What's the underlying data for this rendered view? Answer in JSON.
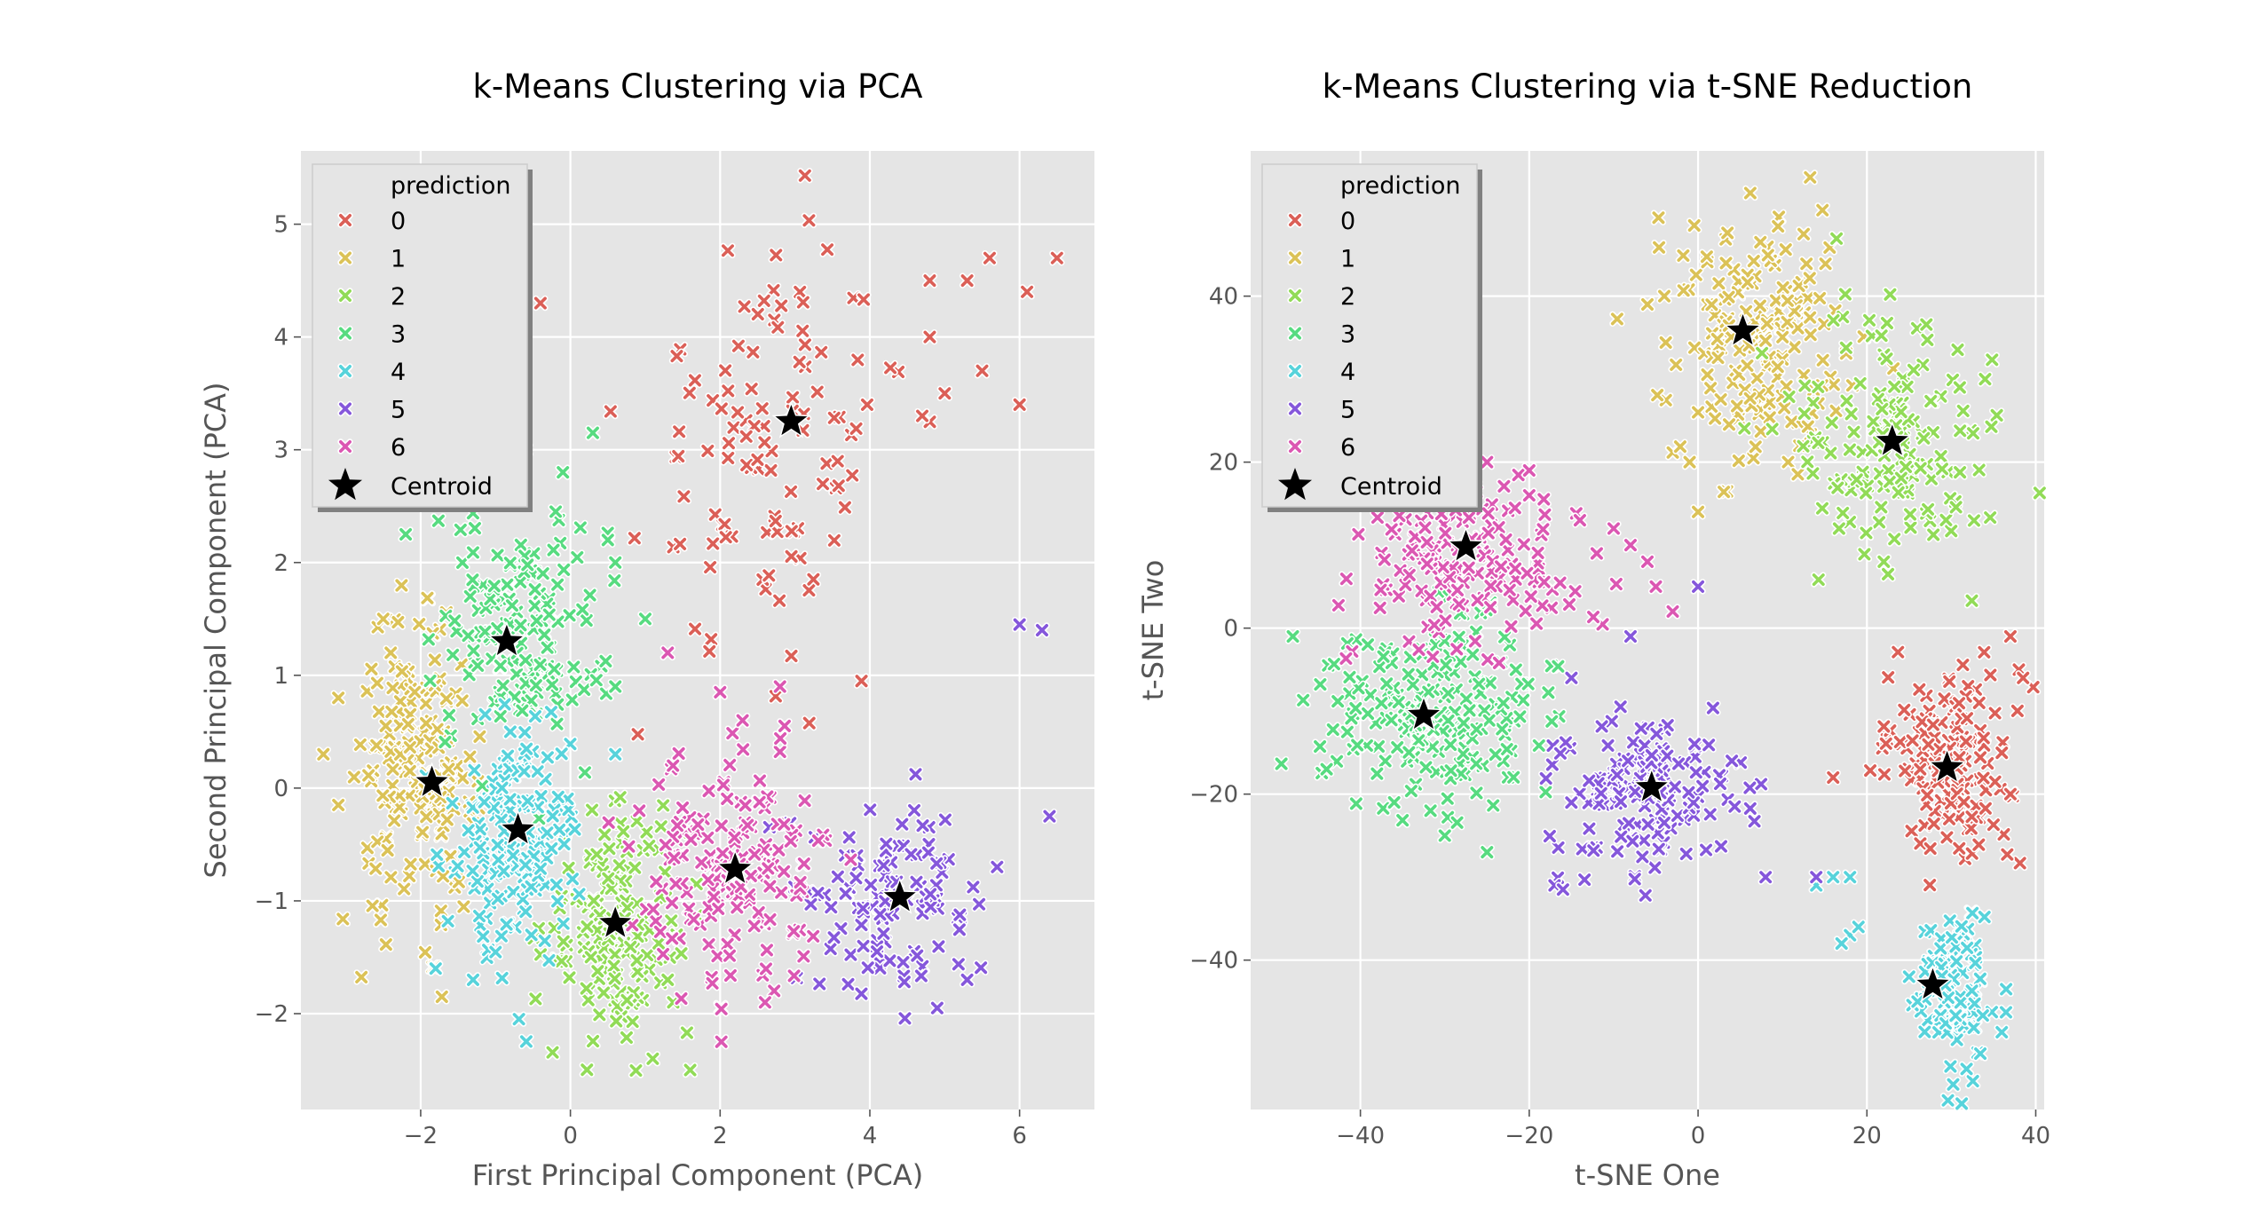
{
  "chart_data": [
    {
      "type": "scatter",
      "title": "k-Means Clustering via PCA",
      "xlabel": "First Principal Component (PCA)",
      "ylabel": "Second Principal Component (PCA)",
      "xlim": [
        -3.6,
        7.0
      ],
      "ylim": [
        -2.85,
        5.65
      ],
      "xticks": [
        -2,
        0,
        2,
        4,
        6
      ],
      "xtick_labels": [
        "−2",
        "0",
        "2",
        "4",
        "6"
      ],
      "yticks": [
        -2,
        -1,
        0,
        1,
        2,
        3,
        4,
        5
      ],
      "ytick_labels": [
        "−2",
        "−1",
        "0",
        "1",
        "2",
        "3",
        "4",
        "5"
      ],
      "grid": true,
      "legend": {
        "title": "prediction",
        "entries": [
          "0",
          "1",
          "2",
          "3",
          "4",
          "5",
          "6"
        ],
        "centroid_label": "Centroid",
        "position": "top-left"
      },
      "clusters": [
        {
          "id": "0",
          "color": "#db5f57",
          "center": [
            2.7,
            3.1
          ],
          "spread": [
            0.9,
            0.95
          ],
          "count": 110,
          "extra": [
            [
              -0.6,
              3.0
            ],
            [
              -0.4,
              4.3
            ],
            [
              4.8,
              4.5
            ],
            [
              5.3,
              4.5
            ],
            [
              5.6,
              4.7
            ],
            [
              6.5,
              4.7
            ],
            [
              6.1,
              4.4
            ],
            [
              4.8,
              4.0
            ],
            [
              4.7,
              3.3
            ],
            [
              5.0,
              3.5
            ],
            [
              5.5,
              3.7
            ],
            [
              6.0,
              3.4
            ]
          ]
        },
        {
          "id": "1",
          "color": "#dbc257",
          "center": [
            -2.05,
            0.1
          ],
          "spread": [
            0.38,
            0.62
          ],
          "count": 180,
          "extra": [
            [
              -3.3,
              0.3
            ],
            [
              -3.1,
              0.8
            ],
            [
              -3.1,
              -0.15
            ],
            [
              -2.5,
              1.5
            ],
            [
              -2.4,
              1.2
            ]
          ]
        },
        {
          "id": "2",
          "color": "#91db57",
          "center": [
            0.65,
            -1.2
          ],
          "spread": [
            0.48,
            0.5
          ],
          "count": 150,
          "extra": [
            [
              1.1,
              -2.4
            ],
            [
              1.6,
              -2.5
            ],
            [
              1.3,
              -1.7
            ]
          ]
        },
        {
          "id": "3",
          "color": "#57db80",
          "center": [
            -0.7,
            1.35
          ],
          "spread": [
            0.55,
            0.55
          ],
          "count": 150,
          "extra": [
            [
              0.3,
              3.15
            ],
            [
              -0.1,
              2.8
            ],
            [
              0.5,
              2.2
            ],
            [
              0.6,
              2.0
            ],
            [
              1.0,
              1.5
            ],
            [
              0.6,
              0.9
            ],
            [
              -2.2,
              2.25
            ]
          ]
        },
        {
          "id": "4",
          "color": "#57d3db",
          "center": [
            -0.7,
            -0.4
          ],
          "spread": [
            0.42,
            0.55
          ],
          "count": 170,
          "extra": [
            [
              -1.8,
              -1.6
            ],
            [
              -1.3,
              -1.7
            ],
            [
              0.6,
              0.3
            ]
          ]
        },
        {
          "id": "5",
          "color": "#8557db",
          "center": [
            4.3,
            -1.0
          ],
          "spread": [
            0.55,
            0.42
          ],
          "count": 110,
          "extra": [
            [
              6.0,
              1.45
            ],
            [
              6.3,
              1.4
            ],
            [
              6.4,
              -0.25
            ],
            [
              4.9,
              -1.95
            ],
            [
              5.3,
              -1.7
            ],
            [
              5.7,
              -0.7
            ]
          ]
        },
        {
          "id": "6",
          "color": "#db57b2",
          "center": [
            2.2,
            -0.75
          ],
          "spread": [
            0.62,
            0.5
          ],
          "count": 160,
          "extra": [
            [
              2.3,
              0.6
            ],
            [
              2.0,
              0.85
            ],
            [
              1.3,
              1.2
            ],
            [
              2.8,
              0.9
            ],
            [
              2.6,
              -1.9
            ]
          ]
        }
      ],
      "centroids": [
        [
          2.95,
          3.25
        ],
        [
          -1.85,
          0.05
        ],
        [
          0.6,
          -1.2
        ],
        [
          -0.85,
          1.3
        ],
        [
          -0.7,
          -0.37
        ],
        [
          4.4,
          -0.97
        ],
        [
          2.2,
          -0.72
        ]
      ]
    },
    {
      "type": "scatter",
      "title": "k-Means Clustering via t-SNE Reduction",
      "xlabel": "t-SNE One",
      "ylabel": "t-SNE Two",
      "xlim": [
        -53,
        41
      ],
      "ylim": [
        -58,
        57.5
      ],
      "xticks": [
        -40,
        -20,
        0,
        20,
        40
      ],
      "xtick_labels": [
        "−40",
        "−20",
        "0",
        "20",
        "40"
      ],
      "yticks": [
        -40,
        -20,
        0,
        20,
        40
      ],
      "ytick_labels": [
        "−40",
        "−20",
        "0",
        "20",
        "40"
      ],
      "grid": true,
      "legend": {
        "title": "prediction",
        "entries": [
          "0",
          "1",
          "2",
          "3",
          "4",
          "5",
          "6"
        ],
        "centroid_label": "Centroid",
        "position": "top-left"
      },
      "clusters": [
        {
          "id": "0",
          "color": "#db5f57",
          "center": [
            30,
            -16
          ],
          "spread": [
            4.0,
            6.0
          ],
          "count": 140,
          "extra": [
            [
              37,
              -1
            ],
            [
              38,
              -5
            ],
            [
              38.5,
              -6
            ],
            [
              16,
              -18
            ],
            [
              37,
              -20
            ]
          ]
        },
        {
          "id": "1",
          "color": "#dbc257",
          "center": [
            7,
            35
          ],
          "spread": [
            5.5,
            8.0
          ],
          "count": 170,
          "extra": [
            [
              -6,
              39
            ],
            [
              -4,
              40
            ],
            [
              -1,
              20
            ],
            [
              0,
              26
            ],
            [
              0,
              14
            ]
          ]
        },
        {
          "id": "2",
          "color": "#91db57",
          "center": [
            23,
            23
          ],
          "spread": [
            5.0,
            8.0
          ],
          "count": 150,
          "extra": [
            [
              22,
              8
            ],
            [
              22.5,
              6.5
            ],
            [
              31,
              29
            ],
            [
              34,
              30
            ]
          ]
        },
        {
          "id": "3",
          "color": "#57db80",
          "center": [
            -32,
            -10
          ],
          "spread": [
            6.5,
            6.0
          ],
          "count": 190,
          "extra": [
            [
              -48,
              -1
            ],
            [
              -44,
              -17
            ],
            [
              -36,
              -21
            ],
            [
              -30,
              -25
            ],
            [
              -25,
              -27
            ]
          ]
        },
        {
          "id": "4",
          "color": "#57d3db",
          "center": [
            30,
            -44
          ],
          "spread": [
            2.4,
            5.0
          ],
          "count": 110,
          "extra": [
            [
              14,
              -31
            ],
            [
              16,
              -30
            ],
            [
              18,
              -30
            ],
            [
              18,
              -37
            ],
            [
              17,
              -38
            ],
            [
              19,
              -36
            ],
            [
              25,
              -42
            ],
            [
              26,
              -45
            ]
          ]
        },
        {
          "id": "5",
          "color": "#8557db",
          "center": [
            -6,
            -20
          ],
          "spread": [
            6.0,
            5.0
          ],
          "count": 150,
          "extra": [
            [
              -17,
              -31
            ],
            [
              -16,
              -31.5
            ],
            [
              4,
              -16
            ],
            [
              8,
              -30
            ],
            [
              14,
              -30
            ],
            [
              -15,
              -6
            ],
            [
              -8,
              -1
            ],
            [
              0,
              5
            ]
          ]
        },
        {
          "id": "6",
          "color": "#db57b2",
          "center": [
            -28,
            8
          ],
          "spread": [
            7.0,
            5.5
          ],
          "count": 160,
          "extra": [
            [
              -25,
              20
            ],
            [
              -20,
              19
            ],
            [
              -20,
              16
            ],
            [
              -14,
              13
            ],
            [
              -10,
              12
            ],
            [
              -12,
              9
            ],
            [
              -8,
              10
            ],
            [
              -6,
              8
            ],
            [
              -5,
              5
            ],
            [
              -3,
              2
            ]
          ]
        }
      ],
      "centroids": [
        [
          29.5,
          -16.8
        ],
        [
          5.3,
          35.8
        ],
        [
          23,
          22.5
        ],
        [
          -32.5,
          -10.5
        ],
        [
          27.8,
          -43
        ],
        [
          -5.5,
          -19.2
        ],
        [
          -27.5,
          9.8
        ]
      ]
    }
  ]
}
